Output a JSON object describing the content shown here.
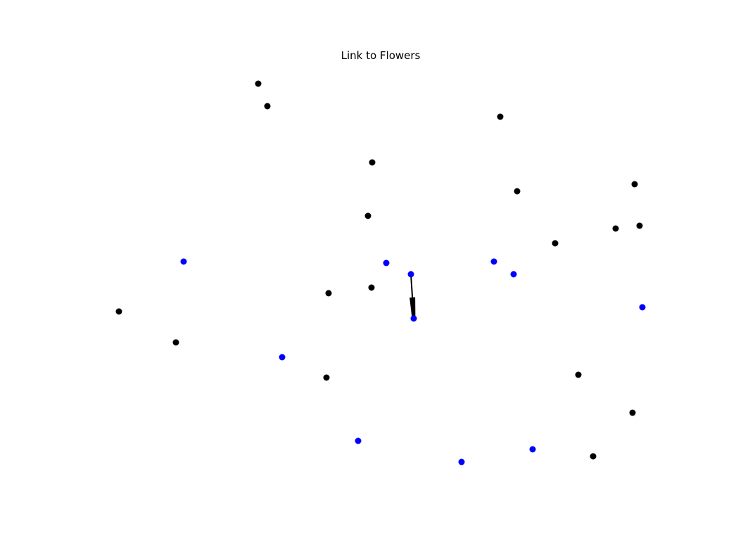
{
  "title": "Link to Flowers",
  "colors": {
    "background": "#ffffff",
    "node_default": "#000000",
    "node_highlight": "#0000ff",
    "edge": "#000000"
  },
  "graph": {
    "nodes": [
      {
        "id": "n1",
        "group": "default"
      },
      {
        "id": "n2",
        "group": "default"
      },
      {
        "id": "n3",
        "group": "default"
      },
      {
        "id": "n4",
        "group": "default"
      },
      {
        "id": "n5",
        "group": "default"
      },
      {
        "id": "n6",
        "group": "default"
      },
      {
        "id": "n7",
        "group": "default"
      },
      {
        "id": "n8",
        "group": "default"
      },
      {
        "id": "n9",
        "group": "default"
      },
      {
        "id": "n10",
        "group": "highlight"
      },
      {
        "id": "n11",
        "group": "highlight"
      },
      {
        "id": "n12",
        "group": "highlight"
      },
      {
        "id": "n13",
        "group": "highlight"
      },
      {
        "id": "n14",
        "group": "highlight"
      },
      {
        "id": "n15",
        "group": "default"
      },
      {
        "id": "n16",
        "group": "default"
      },
      {
        "id": "n17",
        "group": "default"
      },
      {
        "id": "n18",
        "group": "highlight"
      },
      {
        "id": "n19",
        "group": "highlight"
      },
      {
        "id": "n20",
        "group": "default"
      },
      {
        "id": "n21",
        "group": "default"
      },
      {
        "id": "n22",
        "group": "highlight"
      },
      {
        "id": "n23",
        "group": "default"
      },
      {
        "id": "n24",
        "group": "default"
      },
      {
        "id": "n25",
        "group": "default"
      },
      {
        "id": "n26",
        "group": "highlight"
      },
      {
        "id": "n27",
        "group": "highlight"
      },
      {
        "id": "n28",
        "group": "highlight"
      },
      {
        "id": "n29",
        "group": "default"
      }
    ],
    "edges": [
      {
        "source": "n14",
        "target": "n18",
        "directed": true
      }
    ]
  }
}
